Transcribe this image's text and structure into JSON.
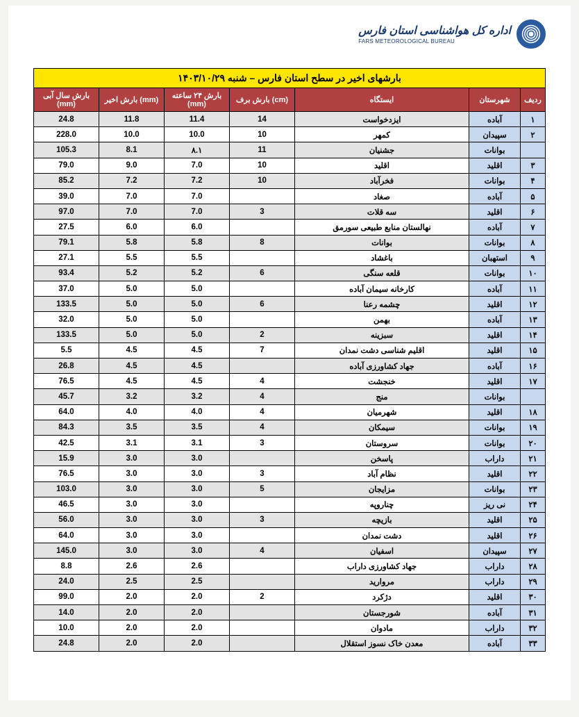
{
  "header": {
    "org_fa": "اداره کل هواشناسی استان فارس",
    "org_en": "FARS METEOROLOGICAL BUREAU"
  },
  "table": {
    "title": "بارشهای اخیر در سطح استان فارس – شنبه ۱۴۰۳/۱۰/۲۹",
    "columns": [
      "ردیف",
      "شهرستان",
      "ایستگاه",
      "بارش برف (cm)",
      "بارش ۲۴ ساعته (mm)",
      "بارش اخیر (mm)",
      "بارش سال آبی (mm)"
    ],
    "rows": [
      {
        "n": "۱",
        "sh": "آباده",
        "st": "ایزدخواست",
        "snow": "14",
        "d24": "11.4",
        "recent": "11.8",
        "year": "24.8"
      },
      {
        "n": "۲",
        "sh": "سپیدان",
        "st": "کمهر",
        "snow": "10",
        "d24": "10.0",
        "recent": "10.0",
        "year": "228.0"
      },
      {
        "n": "",
        "sh": "بوانات",
        "st": "جشنیان",
        "snow": "11",
        "d24": "۸.۱",
        "recent": "8.1",
        "year": "105.3"
      },
      {
        "n": "۳",
        "sh": "اقلید",
        "st": "اقلید",
        "snow": "10",
        "d24": "7.0",
        "recent": "9.0",
        "year": "79.0"
      },
      {
        "n": "۴",
        "sh": "بوانات",
        "st": "فخرآباد",
        "snow": "10",
        "d24": "7.2",
        "recent": "7.2",
        "year": "85.2"
      },
      {
        "n": "۵",
        "sh": "آباده",
        "st": "صغاد",
        "snow": "",
        "d24": "7.0",
        "recent": "7.0",
        "year": "39.0"
      },
      {
        "n": "۶",
        "sh": "اقلید",
        "st": "سه قلات",
        "snow": "3",
        "d24": "7.0",
        "recent": "7.0",
        "year": "97.0"
      },
      {
        "n": "۷",
        "sh": "آباده",
        "st": "نهالستان منابع طبیعی سورمق",
        "snow": "",
        "d24": "6.0",
        "recent": "6.0",
        "year": "27.5"
      },
      {
        "n": "۸",
        "sh": "بوانات",
        "st": "بوانات",
        "snow": "8",
        "d24": "5.8",
        "recent": "5.8",
        "year": "79.1"
      },
      {
        "n": "۹",
        "sh": "استهبان",
        "st": "باغشاد",
        "snow": "",
        "d24": "5.5",
        "recent": "5.5",
        "year": "27.1"
      },
      {
        "n": "۱۰",
        "sh": "بوانات",
        "st": "قلعه سنگی",
        "snow": "6",
        "d24": "5.2",
        "recent": "5.2",
        "year": "93.4"
      },
      {
        "n": "۱۱",
        "sh": "آباده",
        "st": "کارخانه سیمان آباده",
        "snow": "",
        "d24": "5.0",
        "recent": "5.0",
        "year": "37.0"
      },
      {
        "n": "۱۲",
        "sh": "اقلید",
        "st": "چشمه رعنا",
        "snow": "6",
        "d24": "5.0",
        "recent": "5.0",
        "year": "133.5"
      },
      {
        "n": "۱۳",
        "sh": "آباده",
        "st": "بهمن",
        "snow": "",
        "d24": "5.0",
        "recent": "5.0",
        "year": "32.0"
      },
      {
        "n": "۱۴",
        "sh": "اقلید",
        "st": "سبزینه",
        "snow": "2",
        "d24": "5.0",
        "recent": "5.0",
        "year": "133.5"
      },
      {
        "n": "۱۵",
        "sh": "اقلید",
        "st": "اقلیم شناسی دشت نمدان",
        "snow": "7",
        "d24": "4.5",
        "recent": "4.5",
        "year": "5.5"
      },
      {
        "n": "۱۶",
        "sh": "آباده",
        "st": "جهاد کشاورزی آباده",
        "snow": "",
        "d24": "4.5",
        "recent": "4.5",
        "year": "26.8"
      },
      {
        "n": "۱۷",
        "sh": "اقلید",
        "st": "خنجشت",
        "snow": "4",
        "d24": "4.5",
        "recent": "4.5",
        "year": "76.5"
      },
      {
        "n": "",
        "sh": "بوانات",
        "st": "منج",
        "snow": "4",
        "d24": "3.2",
        "recent": "3.2",
        "year": "45.7"
      },
      {
        "n": "۱۸",
        "sh": "اقلید",
        "st": "شهرمیان",
        "snow": "4",
        "d24": "4.0",
        "recent": "4.0",
        "year": "64.0"
      },
      {
        "n": "۱۹",
        "sh": "بوانات",
        "st": "سیمکان",
        "snow": "4",
        "d24": "3.5",
        "recent": "3.5",
        "year": "84.3"
      },
      {
        "n": "۲۰",
        "sh": "بوانات",
        "st": "سروستان",
        "snow": "3",
        "d24": "3.1",
        "recent": "3.1",
        "year": "42.5"
      },
      {
        "n": "۲۱",
        "sh": "داراب",
        "st": "پاسخن",
        "snow": "",
        "d24": "3.0",
        "recent": "3.0",
        "year": "15.9"
      },
      {
        "n": "۲۲",
        "sh": "اقلید",
        "st": "نظام آباد",
        "snow": "3",
        "d24": "3.0",
        "recent": "3.0",
        "year": "76.5"
      },
      {
        "n": "۲۳",
        "sh": "بوانات",
        "st": "مزایجان",
        "snow": "5",
        "d24": "3.0",
        "recent": "3.0",
        "year": "103.0"
      },
      {
        "n": "۲۴",
        "sh": "نی ریز",
        "st": "چناروپه",
        "snow": "",
        "d24": "3.0",
        "recent": "3.0",
        "year": "46.5"
      },
      {
        "n": "۲۵",
        "sh": "اقلید",
        "st": "بازیچه",
        "snow": "3",
        "d24": "3.0",
        "recent": "3.0",
        "year": "56.0"
      },
      {
        "n": "۲۶",
        "sh": "اقلید",
        "st": "دشت نمدان",
        "snow": "",
        "d24": "3.0",
        "recent": "3.0",
        "year": "64.0"
      },
      {
        "n": "۲۷",
        "sh": "سپیدان",
        "st": "اسفیان",
        "snow": "4",
        "d24": "3.0",
        "recent": "3.0",
        "year": "145.0"
      },
      {
        "n": "۲۸",
        "sh": "داراب",
        "st": "جهاد کشاورزی داراب",
        "snow": "",
        "d24": "2.6",
        "recent": "2.6",
        "year": "8.8"
      },
      {
        "n": "۲۹",
        "sh": "داراب",
        "st": "مروارید",
        "snow": "",
        "d24": "2.5",
        "recent": "2.5",
        "year": "24.0"
      },
      {
        "n": "۳۰",
        "sh": "اقلید",
        "st": "دژکرد",
        "snow": "2",
        "d24": "2.0",
        "recent": "2.0",
        "year": "99.0"
      },
      {
        "n": "۳۱",
        "sh": "آباده",
        "st": "شورجستان",
        "snow": "",
        "d24": "2.0",
        "recent": "2.0",
        "year": "14.0"
      },
      {
        "n": "۳۲",
        "sh": "داراب",
        "st": "مادوان",
        "snow": "",
        "d24": "2.0",
        "recent": "2.0",
        "year": "10.0"
      },
      {
        "n": "۳۳",
        "sh": "آباده",
        "st": "معدن خاک نسوز استقلال",
        "snow": "",
        "d24": "2.0",
        "recent": "2.0",
        "year": "24.8"
      }
    ]
  },
  "colors": {
    "title_bg": "#ffe600",
    "header_bg": "#b14040",
    "header_fg": "#ffffff",
    "row_odd": "#e3e3e3",
    "row_even": "#ffffff",
    "sh_bg": "#c7d8ee",
    "border": "#000000"
  }
}
